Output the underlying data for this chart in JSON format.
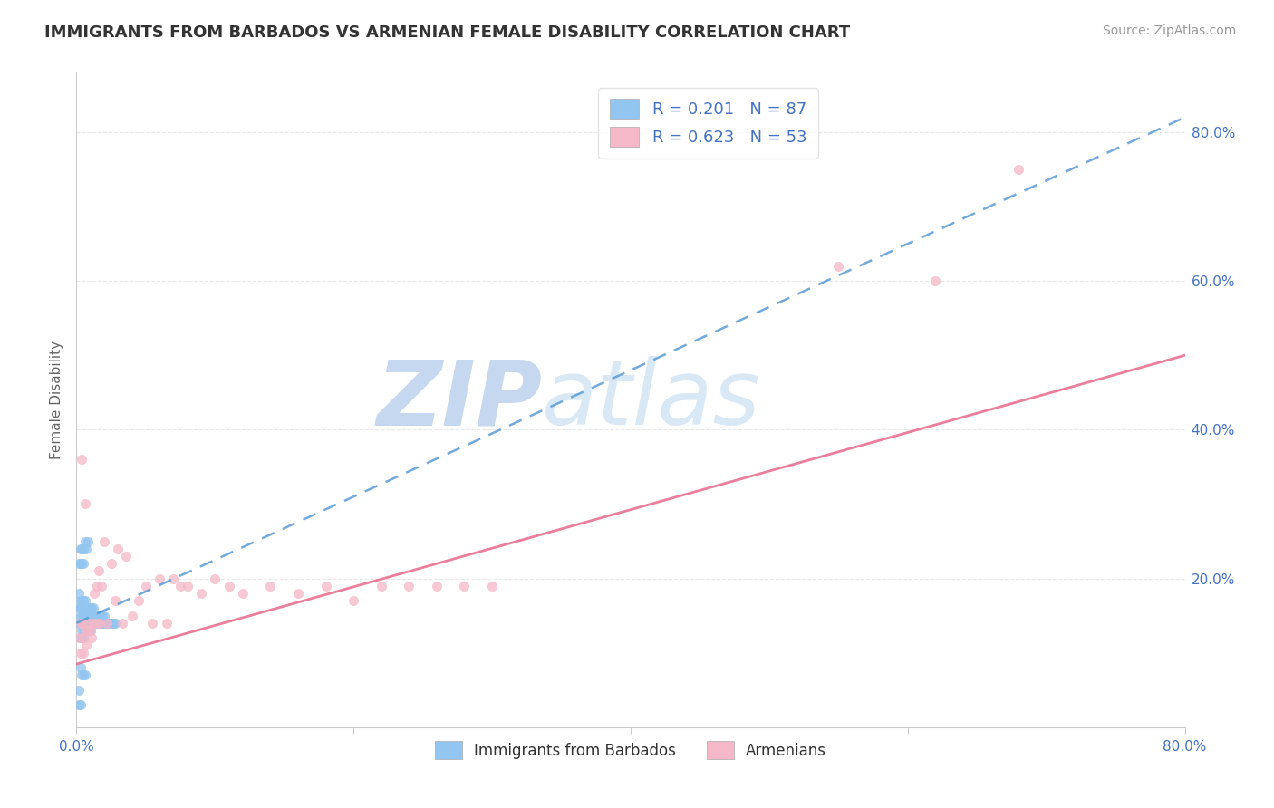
{
  "title": "IMMIGRANTS FROM BARBADOS VS ARMENIAN FEMALE DISABILITY CORRELATION CHART",
  "source": "Source: ZipAtlas.com",
  "ylabel": "Female Disability",
  "xlim": [
    0.0,
    0.8
  ],
  "ylim": [
    0.0,
    0.88
  ],
  "x_ticks": [
    0.0,
    0.2,
    0.4,
    0.6,
    0.8
  ],
  "x_tick_labels": [
    "0.0%",
    "",
    "",
    "",
    "80.0%"
  ],
  "y_ticks": [
    0.2,
    0.4,
    0.6,
    0.8
  ],
  "y_tick_labels": [
    "20.0%",
    "40.0%",
    "60.0%",
    "80.0%"
  ],
  "series1_label": "Immigrants from Barbados",
  "series1_color": "#92c5f0",
  "series1_line_color": "#5b9bd5",
  "series1_R": 0.201,
  "series1_N": 87,
  "series2_label": "Armenians",
  "series2_color": "#f5b8c8",
  "series2_line_color": "#e8698a",
  "series2_R": 0.623,
  "series2_N": 53,
  "background_color": "#ffffff",
  "watermark": "ZIPAtlas",
  "watermark_color": "#d0e4f7",
  "grid_color": "#e8e8e8",
  "series1_x": [
    0.002,
    0.002,
    0.002,
    0.003,
    0.003,
    0.003,
    0.003,
    0.003,
    0.004,
    0.004,
    0.004,
    0.004,
    0.004,
    0.005,
    0.005,
    0.005,
    0.005,
    0.005,
    0.005,
    0.006,
    0.006,
    0.006,
    0.006,
    0.006,
    0.007,
    0.007,
    0.007,
    0.007,
    0.008,
    0.008,
    0.008,
    0.008,
    0.009,
    0.009,
    0.009,
    0.009,
    0.01,
    0.01,
    0.01,
    0.01,
    0.011,
    0.011,
    0.011,
    0.012,
    0.012,
    0.012,
    0.013,
    0.013,
    0.014,
    0.014,
    0.015,
    0.015,
    0.016,
    0.016,
    0.017,
    0.017,
    0.018,
    0.018,
    0.019,
    0.019,
    0.02,
    0.02,
    0.021,
    0.022,
    0.023,
    0.024,
    0.025,
    0.026,
    0.027,
    0.028,
    0.003,
    0.004,
    0.005,
    0.006,
    0.007,
    0.008,
    0.003,
    0.004,
    0.005,
    0.006,
    0.002,
    0.003,
    0.004,
    0.005,
    0.002,
    0.002,
    0.003
  ],
  "series1_y": [
    0.14,
    0.16,
    0.18,
    0.14,
    0.15,
    0.16,
    0.17,
    0.12,
    0.14,
    0.15,
    0.16,
    0.13,
    0.17,
    0.14,
    0.15,
    0.16,
    0.13,
    0.17,
    0.12,
    0.14,
    0.15,
    0.16,
    0.13,
    0.17,
    0.14,
    0.15,
    0.16,
    0.13,
    0.14,
    0.15,
    0.16,
    0.13,
    0.14,
    0.15,
    0.16,
    0.13,
    0.14,
    0.15,
    0.16,
    0.13,
    0.14,
    0.15,
    0.16,
    0.14,
    0.15,
    0.16,
    0.14,
    0.15,
    0.14,
    0.15,
    0.14,
    0.15,
    0.14,
    0.15,
    0.14,
    0.15,
    0.14,
    0.15,
    0.14,
    0.15,
    0.14,
    0.15,
    0.14,
    0.14,
    0.14,
    0.14,
    0.14,
    0.14,
    0.14,
    0.14,
    0.24,
    0.24,
    0.24,
    0.25,
    0.24,
    0.25,
    0.08,
    0.07,
    0.07,
    0.07,
    0.22,
    0.22,
    0.22,
    0.22,
    0.05,
    0.03,
    0.03
  ],
  "series2_x": [
    0.002,
    0.003,
    0.003,
    0.004,
    0.004,
    0.005,
    0.005,
    0.006,
    0.006,
    0.007,
    0.008,
    0.009,
    0.01,
    0.011,
    0.012,
    0.013,
    0.014,
    0.015,
    0.016,
    0.017,
    0.018,
    0.02,
    0.022,
    0.025,
    0.028,
    0.03,
    0.033,
    0.036,
    0.04,
    0.045,
    0.05,
    0.055,
    0.06,
    0.065,
    0.07,
    0.075,
    0.08,
    0.09,
    0.1,
    0.11,
    0.12,
    0.14,
    0.16,
    0.18,
    0.2,
    0.22,
    0.24,
    0.26,
    0.28,
    0.3,
    0.55,
    0.62,
    0.68
  ],
  "series2_y": [
    0.12,
    0.14,
    0.1,
    0.36,
    0.14,
    0.12,
    0.1,
    0.3,
    0.13,
    0.11,
    0.13,
    0.14,
    0.13,
    0.12,
    0.14,
    0.18,
    0.14,
    0.19,
    0.21,
    0.14,
    0.19,
    0.25,
    0.14,
    0.22,
    0.17,
    0.24,
    0.14,
    0.23,
    0.15,
    0.17,
    0.19,
    0.14,
    0.2,
    0.14,
    0.2,
    0.19,
    0.19,
    0.18,
    0.2,
    0.19,
    0.18,
    0.19,
    0.18,
    0.19,
    0.17,
    0.19,
    0.19,
    0.19,
    0.19,
    0.19,
    0.62,
    0.6,
    0.75
  ],
  "trendline1_x0": 0.0,
  "trendline1_x1": 0.8,
  "trendline1_y0": 0.14,
  "trendline1_y1": 0.82,
  "trendline2_x0": 0.0,
  "trendline2_x1": 0.8,
  "trendline2_y0": 0.085,
  "trendline2_y1": 0.5
}
